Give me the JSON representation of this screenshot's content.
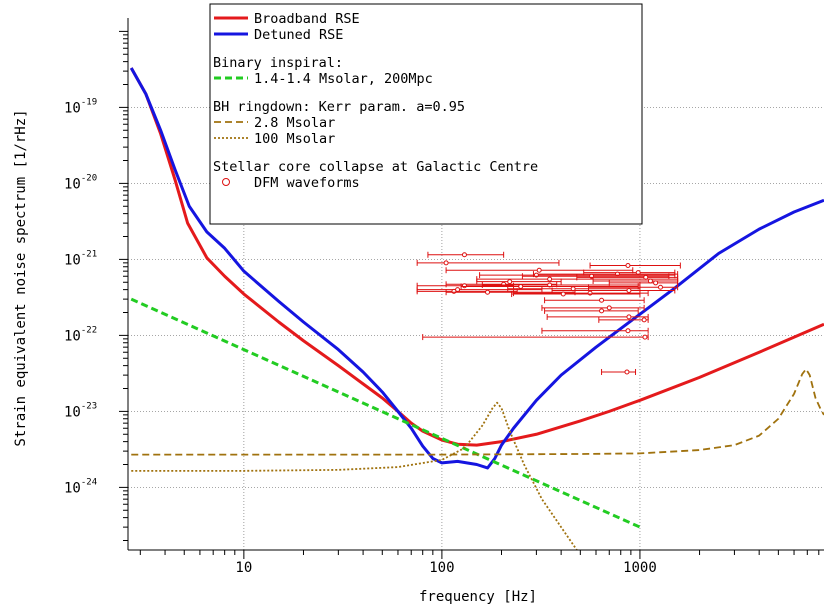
{
  "chart_data": {
    "type": "line",
    "title": "",
    "xlabel": "frequency [Hz]",
    "ylabel": "Strain equivalent noise spectrum [1/rHz]",
    "xscale": "log",
    "yscale": "log",
    "xlim": [
      2.6,
      8500
    ],
    "ylim": [
      1.5e-25,
      1.5e-18
    ],
    "grid": "dotted",
    "x_ticks": [
      {
        "value": 10,
        "label": "10"
      },
      {
        "value": 100,
        "label": "100"
      },
      {
        "value": 1000,
        "label": "1000"
      }
    ],
    "y_ticks": [
      {
        "value": 1e-24,
        "base": "10",
        "exp": "-24"
      },
      {
        "value": 1e-23,
        "base": "10",
        "exp": "-23"
      },
      {
        "value": 1e-22,
        "base": "10",
        "exp": "-22"
      },
      {
        "value": 1e-21,
        "base": "10",
        "exp": "-21"
      },
      {
        "value": 1e-20,
        "base": "10",
        "exp": "-20"
      },
      {
        "value": 1e-19,
        "base": "10",
        "exp": "-19"
      }
    ],
    "legend": {
      "position": "top-center",
      "entries": [
        {
          "kind": "line",
          "label": "Broadband RSE",
          "series": "broadband"
        },
        {
          "kind": "line",
          "label": "Detuned RSE",
          "series": "detuned"
        },
        {
          "kind": "spacer"
        },
        {
          "kind": "heading",
          "label": "Binary inspiral:"
        },
        {
          "kind": "line",
          "label": "1.4-1.4 Msolar, 200Mpc",
          "series": "inspiral"
        },
        {
          "kind": "spacer"
        },
        {
          "kind": "heading",
          "label": "BH ringdown: Kerr param. a=0.95"
        },
        {
          "kind": "line",
          "label": "2.8 Msolar",
          "series": "ringdown28"
        },
        {
          "kind": "line",
          "label": "100 Msolar",
          "series": "ringdown100"
        },
        {
          "kind": "spacer"
        },
        {
          "kind": "heading",
          "label": "Stellar core collapse at Galactic Centre"
        },
        {
          "kind": "marker",
          "label": "DFM waveforms",
          "series": "dfm"
        }
      ]
    },
    "series": [
      {
        "id": "broadband",
        "name": "Broadband RSE",
        "color": "#e41a1c",
        "dash": "solid",
        "points": [
          [
            2.7,
            3.3e-19
          ],
          [
            3.2,
            1.5e-19
          ],
          [
            3.8,
            4.5e-20
          ],
          [
            4.5,
            1.1e-20
          ],
          [
            5.2,
            3e-21
          ],
          [
            6.5,
            1.05e-21
          ],
          [
            8,
            6e-22
          ],
          [
            10,
            3.5e-22
          ],
          [
            15,
            1.5e-22
          ],
          [
            20,
            8.5e-23
          ],
          [
            30,
            4e-23
          ],
          [
            40,
            2.3e-23
          ],
          [
            50,
            1.5e-23
          ],
          [
            60,
            1e-23
          ],
          [
            70,
            7e-24
          ],
          [
            80,
            5.5e-24
          ],
          [
            100,
            4.2e-24
          ],
          [
            120,
            3.7e-24
          ],
          [
            150,
            3.6e-24
          ],
          [
            200,
            4e-24
          ],
          [
            300,
            5e-24
          ],
          [
            500,
            7.5e-24
          ],
          [
            700,
            1e-23
          ],
          [
            1000,
            1.4e-23
          ],
          [
            2000,
            2.8e-23
          ],
          [
            4000,
            6e-23
          ],
          [
            8500,
            1.4e-22
          ]
        ]
      },
      {
        "id": "detuned",
        "name": "Detuned RSE",
        "color": "#1515e0",
        "dash": "solid",
        "points": [
          [
            2.7,
            3.3e-19
          ],
          [
            3.2,
            1.5e-19
          ],
          [
            3.8,
            5e-20
          ],
          [
            4.5,
            1.5e-20
          ],
          [
            5.3,
            5e-21
          ],
          [
            6.5,
            2.3e-21
          ],
          [
            8,
            1.4e-21
          ],
          [
            10,
            7e-22
          ],
          [
            15,
            2.8e-22
          ],
          [
            20,
            1.5e-22
          ],
          [
            30,
            6.5e-23
          ],
          [
            40,
            3.3e-23
          ],
          [
            50,
            1.8e-23
          ],
          [
            60,
            1e-23
          ],
          [
            70,
            6e-24
          ],
          [
            80,
            3.5e-24
          ],
          [
            90,
            2.4e-24
          ],
          [
            100,
            2.1e-24
          ],
          [
            120,
            2.2e-24
          ],
          [
            150,
            2e-24
          ],
          [
            170,
            1.8e-24
          ],
          [
            185,
            2.4e-24
          ],
          [
            200,
            3.6e-24
          ],
          [
            230,
            6e-24
          ],
          [
            300,
            1.4e-23
          ],
          [
            400,
            3e-23
          ],
          [
            600,
            7e-23
          ],
          [
            1000,
            1.9e-22
          ],
          [
            1500,
            4.2e-22
          ],
          [
            2500,
            1.2e-21
          ],
          [
            4000,
            2.5e-21
          ],
          [
            6000,
            4.2e-21
          ],
          [
            8500,
            6e-21
          ]
        ]
      },
      {
        "id": "inspiral",
        "name": "1.4-1.4 Msolar, 200Mpc",
        "color": "#22cc22",
        "dash": "dashed",
        "points": [
          [
            2.7,
            3e-22
          ],
          [
            1000,
            3e-25
          ]
        ]
      },
      {
        "id": "ringdown28",
        "name": "2.8 Msolar",
        "color": "#a0720e",
        "dash": "dashed",
        "points": [
          [
            2.7,
            2.7e-24
          ],
          [
            10,
            2.7e-24
          ],
          [
            100,
            2.7e-24
          ],
          [
            500,
            2.75e-24
          ],
          [
            1000,
            2.8e-24
          ],
          [
            2000,
            3.1e-24
          ],
          [
            3000,
            3.6e-24
          ],
          [
            4000,
            4.8e-24
          ],
          [
            5000,
            8e-24
          ],
          [
            6000,
            1.7e-23
          ],
          [
            6600,
            3.1e-23
          ],
          [
            6900,
            3.6e-23
          ],
          [
            7200,
            3e-23
          ],
          [
            7700,
            1.5e-23
          ],
          [
            8200,
            1.05e-23
          ],
          [
            8500,
            9e-24
          ]
        ]
      },
      {
        "id": "ringdown100",
        "name": "100 Msolar",
        "color": "#a0720e",
        "dash": "dotted",
        "points": [
          [
            2.7,
            1.65e-24
          ],
          [
            10,
            1.65e-24
          ],
          [
            30,
            1.7e-24
          ],
          [
            60,
            1.85e-24
          ],
          [
            100,
            2.3e-24
          ],
          [
            130,
            3.3e-24
          ],
          [
            160,
            6.5e-24
          ],
          [
            180,
            1.1e-23
          ],
          [
            190,
            1.3e-23
          ],
          [
            200,
            1.1e-23
          ],
          [
            220,
            5.5e-24
          ],
          [
            260,
            2e-24
          ],
          [
            320,
            7e-25
          ],
          [
            400,
            3e-25
          ],
          [
            480,
            1.5e-25
          ]
        ]
      },
      {
        "id": "dfm",
        "name": "DFM waveforms",
        "color": "#dd1111",
        "kind": "errorbar",
        "points": [
          {
            "x": 130,
            "y": 1.15e-21,
            "xmin": 85,
            "xmax": 205
          },
          {
            "x": 105,
            "y": 9e-22,
            "xmin": 75,
            "xmax": 390
          },
          {
            "x": 870,
            "y": 8.3e-22,
            "xmin": 560,
            "xmax": 1600
          },
          {
            "x": 310,
            "y": 7.2e-22,
            "xmin": 105,
            "xmax": 920
          },
          {
            "x": 980,
            "y": 6.7e-22,
            "xmin": 520,
            "xmax": 1500
          },
          {
            "x": 770,
            "y": 6.4e-22,
            "xmin": 290,
            "xmax": 1550
          },
          {
            "x": 300,
            "y": 6.2e-22,
            "xmin": 155,
            "xmax": 1500
          },
          {
            "x": 570,
            "y": 6e-22,
            "xmin": 255,
            "xmax": 1400
          },
          {
            "x": 1070,
            "y": 5.8e-22,
            "xmin": 480,
            "xmax": 1550
          },
          {
            "x": 350,
            "y": 5.5e-22,
            "xmin": 150,
            "xmax": 1550
          },
          {
            "x": 1130,
            "y": 5.2e-22,
            "xmin": 580,
            "xmax": 1550
          },
          {
            "x": 220,
            "y": 5.1e-22,
            "xmin": 150,
            "xmax": 400
          },
          {
            "x": 1200,
            "y": 4.9e-22,
            "xmin": 700,
            "xmax": 1550
          },
          {
            "x": 205,
            "y": 4.7e-22,
            "xmin": 105,
            "xmax": 380
          },
          {
            "x": 350,
            "y": 4.6e-22,
            "xmin": 160,
            "xmax": 1000
          },
          {
            "x": 130,
            "y": 4.5e-22,
            "xmin": 75,
            "xmax": 230
          },
          {
            "x": 250,
            "y": 4.4e-22,
            "xmin": 125,
            "xmax": 980
          },
          {
            "x": 1270,
            "y": 4.3e-22,
            "xmin": 550,
            "xmax": 1550
          },
          {
            "x": 460,
            "y": 4.1e-22,
            "xmin": 215,
            "xmax": 1000
          },
          {
            "x": 120,
            "y": 4e-22,
            "xmin": 75,
            "xmax": 320
          },
          {
            "x": 115,
            "y": 3.8e-22,
            "xmin": 75,
            "xmax": 240
          },
          {
            "x": 170,
            "y": 3.7e-22,
            "xmin": 105,
            "xmax": 470
          },
          {
            "x": 880,
            "y": 3.9e-22,
            "xmin": 360,
            "xmax": 1500
          },
          {
            "x": 560,
            "y": 3.6e-22,
            "xmin": 230,
            "xmax": 1100
          },
          {
            "x": 410,
            "y": 3.5e-22,
            "xmin": 225,
            "xmax": 1000
          },
          {
            "x": 640,
            "y": 2.9e-22,
            "xmin": 330,
            "xmax": 1050
          },
          {
            "x": 700,
            "y": 2.3e-22,
            "xmin": 320,
            "xmax": 1050
          },
          {
            "x": 640,
            "y": 2.1e-22,
            "xmin": 330,
            "xmax": 980
          },
          {
            "x": 880,
            "y": 1.75e-22,
            "xmin": 340,
            "xmax": 1100
          },
          {
            "x": 1050,
            "y": 1.6e-22,
            "xmin": 620,
            "xmax": 1100
          },
          {
            "x": 870,
            "y": 1.15e-22,
            "xmin": 320,
            "xmax": 1100
          },
          {
            "x": 1060,
            "y": 9.5e-23,
            "xmin": 80,
            "xmax": 1100
          },
          {
            "x": 860,
            "y": 3.3e-23,
            "xmin": 640,
            "xmax": 950
          }
        ]
      }
    ]
  }
}
